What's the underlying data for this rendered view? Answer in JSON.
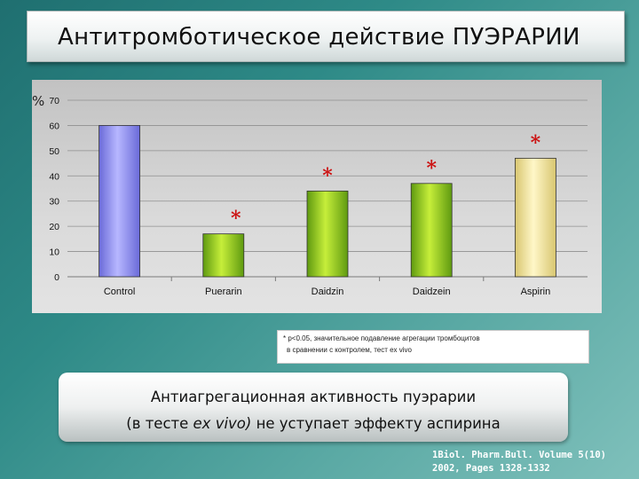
{
  "slide": {
    "title": "Антитромботическое действие ПУЭРАРИИ",
    "footnote_line1": "* p<0.05, значительное подавление агрегации тромбоцитов",
    "footnote_line2": "в сравнении с контролем, тест ex vivo",
    "conclusion_line1": "Антиагрегационная активность пуэрарии",
    "conclusion_line2_before": "(в тесте ",
    "conclusion_line2_italic": "ex vivo)",
    "conclusion_line2_after": " не уступает эффекту аспирина",
    "reference_line1": "1Biol. Pharm.Bull. Volume 5(10)",
    "reference_line2": "2002, Pages 1328-1332"
  },
  "chart_data": {
    "type": "bar",
    "title": "",
    "xlabel": "",
    "ylabel": "%",
    "categories": [
      "Control",
      "Puerarin",
      "Daidzin",
      "Daidzein",
      "Aspirin"
    ],
    "values": [
      60,
      17,
      34,
      37,
      47
    ],
    "significant": [
      false,
      true,
      true,
      true,
      true
    ],
    "ylim": [
      0,
      70
    ],
    "yticks": [
      0,
      10,
      20,
      30,
      40,
      50,
      60,
      70
    ],
    "grid": true,
    "legend": "none",
    "marker_symbol": "*",
    "colors": {
      "control_light": "#b7b7ff",
      "control_dark": "#6a6ad8",
      "treated_light": "#c6ee3a",
      "treated_dark": "#5f9a10",
      "aspirin_light": "#fff7c8",
      "aspirin_dark": "#d8c670",
      "marker": "#cc1111"
    }
  }
}
